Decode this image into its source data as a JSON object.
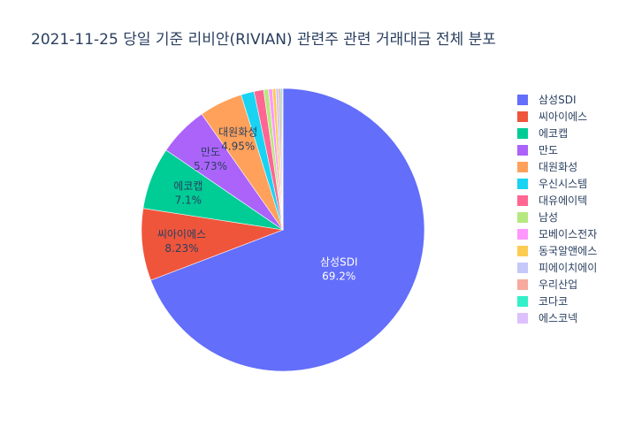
{
  "chart_data": {
    "type": "pie",
    "title": "2021-11-25 당일 기준 리비안(RIVIAN) 관련주 관련 거래대금 전체 분포",
    "labels": [
      "삼성SDI",
      "씨아이에스",
      "에코캡",
      "만도",
      "대원화성",
      "우신시스템",
      "대유에이텍",
      "남성",
      "모베이스전자",
      "동국알앤에스",
      "피에이치에이",
      "우리산업",
      "코다코",
      "에스코넥"
    ],
    "values": [
      69.2,
      8.23,
      7.1,
      5.73,
      4.95,
      1.5,
      1.1,
      0.55,
      0.45,
      0.38,
      0.32,
      0.26,
      0.14,
      0.09
    ],
    "value_labels": [
      "69.2%",
      "8.23%",
      "7.1%",
      "5.73%",
      "4.95%",
      "",
      "",
      "",
      "",
      "",
      "",
      "",
      "",
      ""
    ],
    "colors": [
      "#636efa",
      "#EF553B",
      "#00cc96",
      "#ab63fa",
      "#FFA15A",
      "#19d3f3",
      "#FF6692",
      "#B6E880",
      "#FF97FF",
      "#FECB52",
      "#c6c8fa",
      "#f7aa9d",
      "#33f0c8",
      "#dcc1fd"
    ],
    "legend_position": "right"
  }
}
